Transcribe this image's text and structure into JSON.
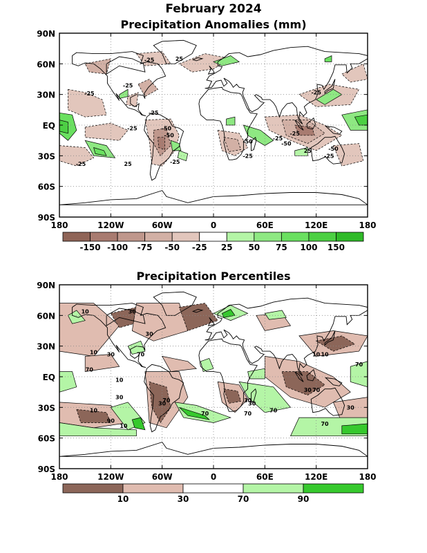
{
  "page": {
    "main_title": "February 2024"
  },
  "panels": [
    {
      "title": "Precipitation Anomalies (mm)",
      "y_labels": [
        "90N",
        "60N",
        "30N",
        "EQ",
        "30S",
        "60S",
        "90S"
      ],
      "x_labels": [
        "180",
        "120W",
        "60W",
        "0",
        "60E",
        "120E",
        "180"
      ],
      "colorbar": {
        "colors": [
          "#8f6457",
          "#a87b70",
          "#bf978c",
          "#d2b0a5",
          "#e2c6bc",
          "#ffffff",
          "#b4f5a6",
          "#8ee882",
          "#6ae060",
          "#4cd043",
          "#2fba28"
        ],
        "labels": [
          "-150",
          "-100",
          "-75",
          "-50",
          "-25",
          "25",
          "50",
          "75",
          "100",
          "150"
        ]
      },
      "contour_labels": [
        "-25",
        "-25",
        "-25",
        "-50",
        "-25",
        "25",
        "-25",
        "-25",
        "25",
        "-50",
        "-25",
        "-25",
        "-50",
        "-25",
        "-50",
        "-25",
        "25",
        "-25",
        "-50",
        "-25"
      ]
    },
    {
      "title": "Precipitation Percentiles",
      "y_labels": [
        "90N",
        "60N",
        "30N",
        "EQ",
        "30S",
        "60S",
        "90S"
      ],
      "x_labels": [
        "180",
        "120W",
        "60W",
        "0",
        "60E",
        "120E",
        "180"
      ],
      "colorbar": {
        "colors": [
          "#8c6659",
          "#e0bcb0",
          "#ffffff",
          "#b4f5a6",
          "#36c92d"
        ],
        "labels": [
          "10",
          "30",
          "70",
          "90"
        ]
      },
      "contour_labels": [
        "10",
        "30",
        "30",
        "10",
        "70",
        "30",
        "10",
        "70",
        "10",
        "30",
        "70",
        "10",
        "30",
        "70",
        "30",
        "90",
        "30",
        "70",
        "70",
        "30",
        "70",
        "10",
        "70",
        "10",
        "30",
        "70"
      ]
    }
  ]
}
